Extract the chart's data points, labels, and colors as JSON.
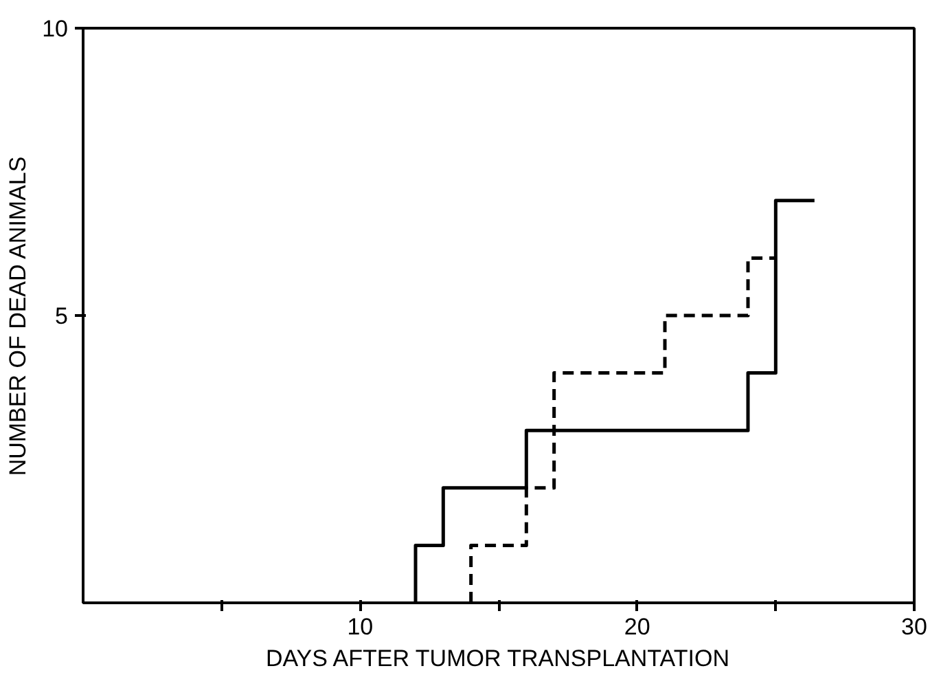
{
  "chart_data": {
    "type": "step",
    "xlabel": "DAYS AFTER TUMOR TRANSPLANTATION",
    "ylabel": "NUMBER OF DEAD ANIMALS",
    "xlim": [
      0,
      30
    ],
    "ylim": [
      0,
      10
    ],
    "xticks": [
      {
        "value": 5,
        "label": null
      },
      10,
      {
        "value": 15,
        "label": null
      },
      20,
      {
        "value": 25,
        "label": null
      },
      30
    ],
    "yticks": [
      5,
      10
    ],
    "grid": false,
    "series": [
      {
        "color": "#000000",
        "line_style": "solid",
        "x": [
          12,
          12,
          13,
          16,
          24,
          25,
          26.4
        ],
        "values": [
          0,
          1,
          2,
          3,
          4,
          7,
          7
        ]
      },
      {
        "color": "#000000",
        "line_style": "dashed",
        "x": [
          14,
          14,
          16,
          17,
          21,
          24,
          25
        ],
        "values": [
          0,
          1,
          2,
          4,
          5,
          6,
          6
        ]
      }
    ]
  }
}
